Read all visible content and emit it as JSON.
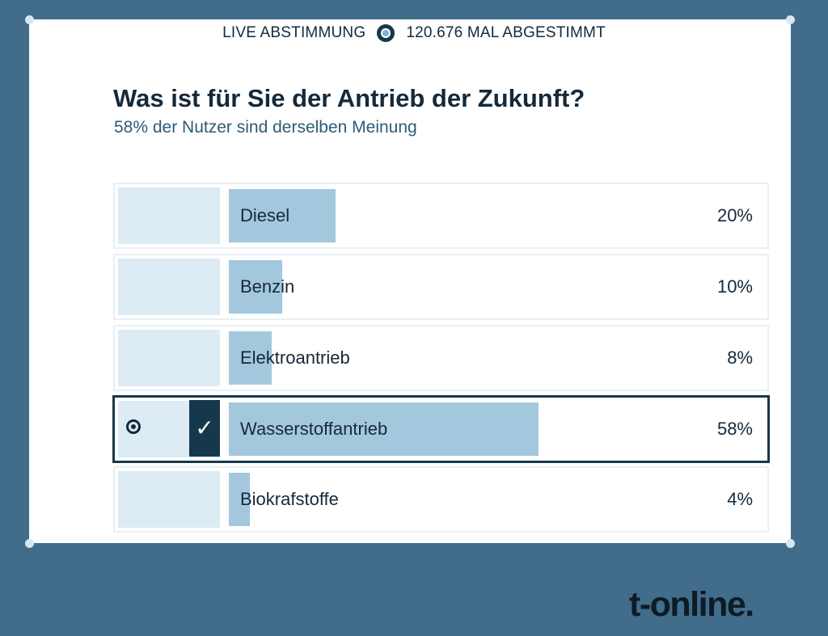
{
  "header": {
    "live_label": "LIVE ABSTIMMUNG",
    "vote_count_label": "120.676 MAL ABGESTIMMT"
  },
  "question": "Was ist für Sie der Antrieb der Zukunft?",
  "subtitle": "58% der Nutzer sind derselben Meinung",
  "options": [
    {
      "label": "Diesel",
      "percent_label": "20%",
      "percent": 20,
      "selected": false
    },
    {
      "label": "Benzin",
      "percent_label": "10%",
      "percent": 10,
      "selected": false
    },
    {
      "label": "Elektroantrieb",
      "percent_label": "8%",
      "percent": 8,
      "selected": false
    },
    {
      "label": "Wasserstoffantrieb",
      "percent_label": "58%",
      "percent": 58,
      "selected": true
    },
    {
      "label": "Biokrafstoffe",
      "percent_label": "4%",
      "percent": 4,
      "selected": false
    }
  ],
  "check_glyph": "✓",
  "brand": "t-online.",
  "colors": {
    "background": "#416d8a",
    "card": "#ffffff",
    "bar_fill": "#a3c8dd",
    "option_left": "#dcebf4",
    "selected_border": "#16384d",
    "text": "#15293a"
  },
  "icons": [
    "live-indicator-icon",
    "radio-selected-icon",
    "checkmark-icon"
  ]
}
